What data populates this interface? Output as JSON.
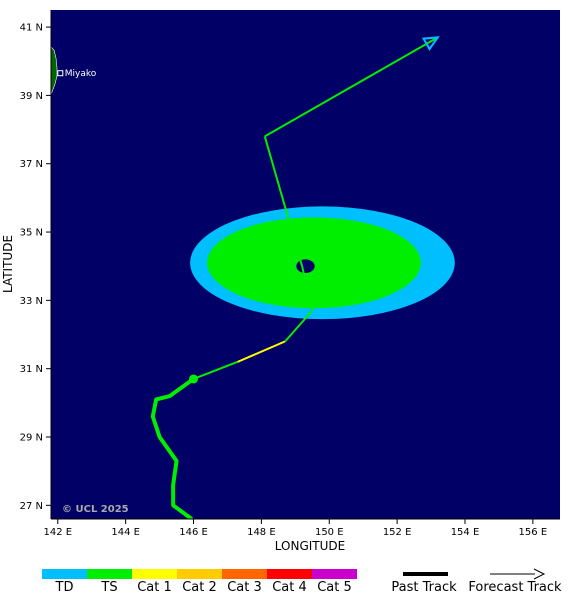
{
  "map": {
    "xlabel": "LONGITUDE",
    "ylabel": "LATITUDE",
    "lon_range": [
      141.8,
      156.8
    ],
    "lat_range": [
      26.6,
      41.5
    ],
    "lon_ticks": [
      {
        "value": 142,
        "label": "142 E"
      },
      {
        "value": 144,
        "label": "144 E"
      },
      {
        "value": 146,
        "label": "146 E"
      },
      {
        "value": 148,
        "label": "148 E"
      },
      {
        "value": 150,
        "label": "150 E"
      },
      {
        "value": 152,
        "label": "152 E"
      },
      {
        "value": 154,
        "label": "154 E"
      },
      {
        "value": 156,
        "label": "156 E"
      }
    ],
    "lat_ticks": [
      {
        "value": 27,
        "label": "27 N"
      },
      {
        "value": 29,
        "label": "29 N"
      },
      {
        "value": 31,
        "label": "31 N"
      },
      {
        "value": 33,
        "label": "33 N"
      },
      {
        "value": 35,
        "label": "35 N"
      },
      {
        "value": 37,
        "label": "37 N"
      },
      {
        "value": 39,
        "label": "39 N"
      },
      {
        "value": 41,
        "label": "41 N"
      }
    ],
    "ocean_color": "#000066",
    "land_color": "#006400",
    "city": {
      "name": "Miyako",
      "lon": 142.0,
      "lat": 39.65
    },
    "copyright": "© UCL 2025"
  },
  "storm": {
    "past_track": [
      {
        "lon": 145.95,
        "lat": 26.6
      },
      {
        "lon": 145.4,
        "lat": 27.0
      },
      {
        "lon": 145.4,
        "lat": 27.6
      },
      {
        "lon": 145.5,
        "lat": 28.3
      },
      {
        "lon": 145.0,
        "lat": 29.0
      },
      {
        "lon": 144.8,
        "lat": 29.6
      },
      {
        "lon": 144.9,
        "lat": 30.1
      },
      {
        "lon": 145.3,
        "lat": 30.2
      },
      {
        "lon": 146.0,
        "lat": 30.7
      }
    ],
    "past_color": "#00ee00",
    "current_position": {
      "lon": 146.0,
      "lat": 30.7
    },
    "forecast_track": [
      {
        "lon": 146.0,
        "lat": 30.7,
        "color": "#00ee00"
      },
      {
        "lon": 147.3,
        "lat": 31.2,
        "color": "#00ee00"
      },
      {
        "lon": 148.7,
        "lat": 31.8,
        "color": "#ffff00"
      },
      {
        "lon": 149.5,
        "lat": 32.7,
        "color": "#00ee00"
      },
      {
        "lon": 149.2,
        "lat": 34.0,
        "color": "#00ee00"
      },
      {
        "lon": 148.1,
        "lat": 37.8,
        "color": "#00ee00"
      },
      {
        "lon": 153.2,
        "lat": 40.7,
        "color": "#00ee00"
      }
    ],
    "wind_field": {
      "center_lon": 149.8,
      "center_lat": 34.1,
      "td_radius_lon": 3.9,
      "td_radius_lat": 1.65,
      "ts_radius_lon": 3.15,
      "ts_radius_lat": 1.33,
      "eye_lon": 149.3,
      "eye_lat": 34.0,
      "eye_radius_lon": 0.27,
      "eye_radius_lat": 0.2,
      "td_color": "#00bfff",
      "ts_color": "#00ee00",
      "eye_color": "#000066"
    }
  },
  "legend": {
    "categories": [
      {
        "label": "TD",
        "color": "#00bfff"
      },
      {
        "label": "TS",
        "color": "#00ee00"
      },
      {
        "label": "Cat 1",
        "color": "#ffff00"
      },
      {
        "label": "Cat 2",
        "color": "#ffcc00"
      },
      {
        "label": "Cat 3",
        "color": "#ff6600"
      },
      {
        "label": "Cat 4",
        "color": "#ff0000"
      },
      {
        "label": "Cat 5",
        "color": "#cc00cc"
      }
    ],
    "past_track_label": "Past Track",
    "forecast_track_label": "Forecast Track"
  }
}
